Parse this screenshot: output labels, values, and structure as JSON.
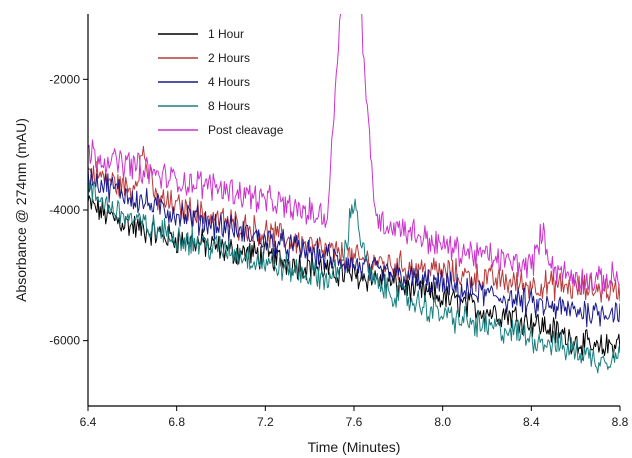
{
  "chart_data": {
    "type": "line",
    "title": "",
    "xlabel": "Time (Minutes)",
    "ylabel": "Absorbance @ 274nm (mAU)",
    "xlim": [
      6.4,
      8.8
    ],
    "ylim": [
      -7000,
      -1000
    ],
    "y_ticks": [
      -2000,
      -4000,
      -6000
    ],
    "x_ticks": [
      6.4,
      6.8,
      7.2,
      7.6,
      8.0,
      8.4,
      8.8
    ],
    "grid": false,
    "legend_position": "top-left",
    "series": [
      {
        "name": "1 Hour",
        "color": "#000000",
        "x": [
          6.4,
          6.5,
          6.6,
          6.7,
          6.8,
          6.9,
          7.0,
          7.1,
          7.2,
          7.3,
          7.4,
          7.5,
          7.6,
          7.7,
          7.8,
          7.9,
          8.0,
          8.1,
          8.2,
          8.3,
          8.4,
          8.5,
          8.6,
          8.7,
          8.8
        ],
        "y": [
          -3900,
          -4100,
          -4250,
          -4350,
          -4450,
          -4500,
          -4600,
          -4650,
          -4700,
          -4800,
          -4850,
          -4950,
          -5000,
          -5050,
          -5150,
          -5250,
          -5350,
          -5450,
          -5550,
          -5600,
          -5700,
          -5850,
          -6000,
          -6150,
          -6000
        ]
      },
      {
        "name": "2 Hours",
        "color": "#b83a3a",
        "x": [
          6.4,
          6.5,
          6.6,
          6.65,
          6.7,
          6.8,
          6.9,
          7.0,
          7.1,
          7.2,
          7.3,
          7.4,
          7.5,
          7.6,
          7.7,
          7.8,
          7.9,
          8.0,
          8.1,
          8.2,
          8.3,
          8.4,
          8.5,
          8.6,
          8.7,
          8.8
        ],
        "y": [
          -3400,
          -3550,
          -3700,
          -3100,
          -3800,
          -3950,
          -4050,
          -4150,
          -4250,
          -4350,
          -4450,
          -4550,
          -4650,
          -4750,
          -4800,
          -4850,
          -4900,
          -4950,
          -5000,
          -5050,
          -5100,
          -5150,
          -5150,
          -5200,
          -5200,
          -5250
        ]
      },
      {
        "name": "4 Hours",
        "color": "#1a1a8c",
        "x": [
          6.4,
          6.5,
          6.6,
          6.7,
          6.8,
          6.9,
          7.0,
          7.1,
          7.2,
          7.3,
          7.4,
          7.5,
          7.6,
          7.7,
          7.8,
          7.9,
          8.0,
          8.1,
          8.2,
          8.3,
          8.4,
          8.5,
          8.6,
          8.7,
          8.8
        ],
        "y": [
          -3500,
          -3650,
          -3800,
          -3950,
          -4050,
          -4150,
          -4250,
          -4350,
          -4450,
          -4550,
          -4650,
          -4750,
          -4850,
          -4950,
          -5000,
          -5100,
          -5150,
          -5250,
          -5300,
          -5350,
          -5450,
          -5500,
          -5550,
          -5550,
          -5550
        ]
      },
      {
        "name": "8 Hours",
        "color": "#1a7f7f",
        "x": [
          6.4,
          6.5,
          6.6,
          6.7,
          6.8,
          6.9,
          7.0,
          7.1,
          7.2,
          7.3,
          7.4,
          7.5,
          7.55,
          7.6,
          7.65,
          7.7,
          7.8,
          7.9,
          8.0,
          8.1,
          8.2,
          8.3,
          8.4,
          8.5,
          8.6,
          8.7,
          8.8
        ],
        "y": [
          -3700,
          -3950,
          -4150,
          -4300,
          -4400,
          -4500,
          -4600,
          -4700,
          -4800,
          -4900,
          -5000,
          -5050,
          -4800,
          -3800,
          -4800,
          -5150,
          -5300,
          -5450,
          -5600,
          -5700,
          -5800,
          -5850,
          -5950,
          -6050,
          -6150,
          -6300,
          -6200
        ]
      },
      {
        "name": "Post cleavage",
        "color": "#cc33cc",
        "x": [
          6.4,
          6.5,
          6.6,
          6.7,
          6.8,
          6.9,
          7.0,
          7.1,
          7.2,
          7.3,
          7.4,
          7.48,
          7.51,
          7.54,
          7.57,
          7.6,
          7.63,
          7.66,
          7.69,
          7.72,
          7.8,
          7.9,
          8.0,
          8.1,
          8.2,
          8.3,
          8.4,
          8.45,
          8.5,
          8.6,
          8.7,
          8.8
        ],
        "y": [
          -3100,
          -3250,
          -3300,
          -3450,
          -3550,
          -3600,
          -3650,
          -3750,
          -3850,
          -3950,
          -4050,
          -4100,
          -2500,
          -800,
          -800,
          -800,
          -800,
          -2500,
          -3850,
          -4200,
          -4250,
          -4400,
          -4550,
          -4650,
          -4700,
          -4800,
          -4850,
          -4350,
          -4900,
          -5050,
          -5100,
          -5000
        ]
      }
    ]
  }
}
